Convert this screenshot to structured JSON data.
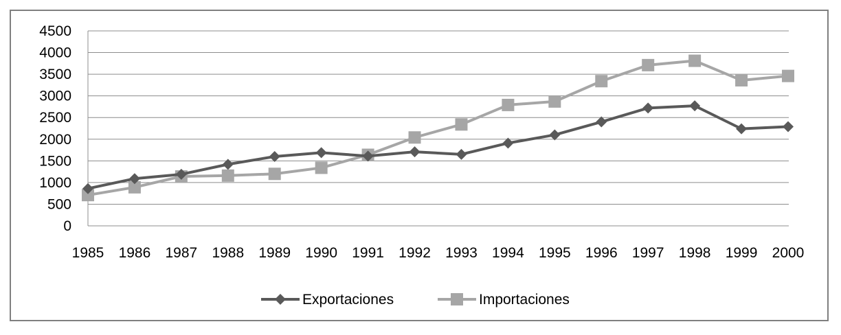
{
  "chart_data": {
    "type": "line",
    "categories": [
      "1985",
      "1986",
      "1987",
      "1988",
      "1989",
      "1990",
      "1991",
      "1992",
      "1993",
      "1994",
      "1995",
      "1996",
      "1997",
      "1998",
      "1999",
      "2000"
    ],
    "ylim": [
      0,
      4500
    ],
    "yticks": [
      0,
      500,
      1000,
      1500,
      2000,
      2500,
      3000,
      3500,
      4000,
      4500
    ],
    "grid": true,
    "legend_position": "bottom",
    "series": [
      {
        "name": "Exportaciones",
        "color": "#595959",
        "marker": "diamond",
        "values": [
          860,
          1090,
          1190,
          1420,
          1600,
          1690,
          1610,
          1710,
          1650,
          1910,
          2100,
          2400,
          2720,
          2770,
          2240,
          2290
        ]
      },
      {
        "name": "Importaciones",
        "color": "#a6a6a6",
        "marker": "square",
        "values": [
          710,
          890,
          1140,
          1160,
          1200,
          1340,
          1640,
          2040,
          2340,
          2790,
          2870,
          3340,
          3710,
          3810,
          3360,
          3460
        ]
      }
    ]
  }
}
